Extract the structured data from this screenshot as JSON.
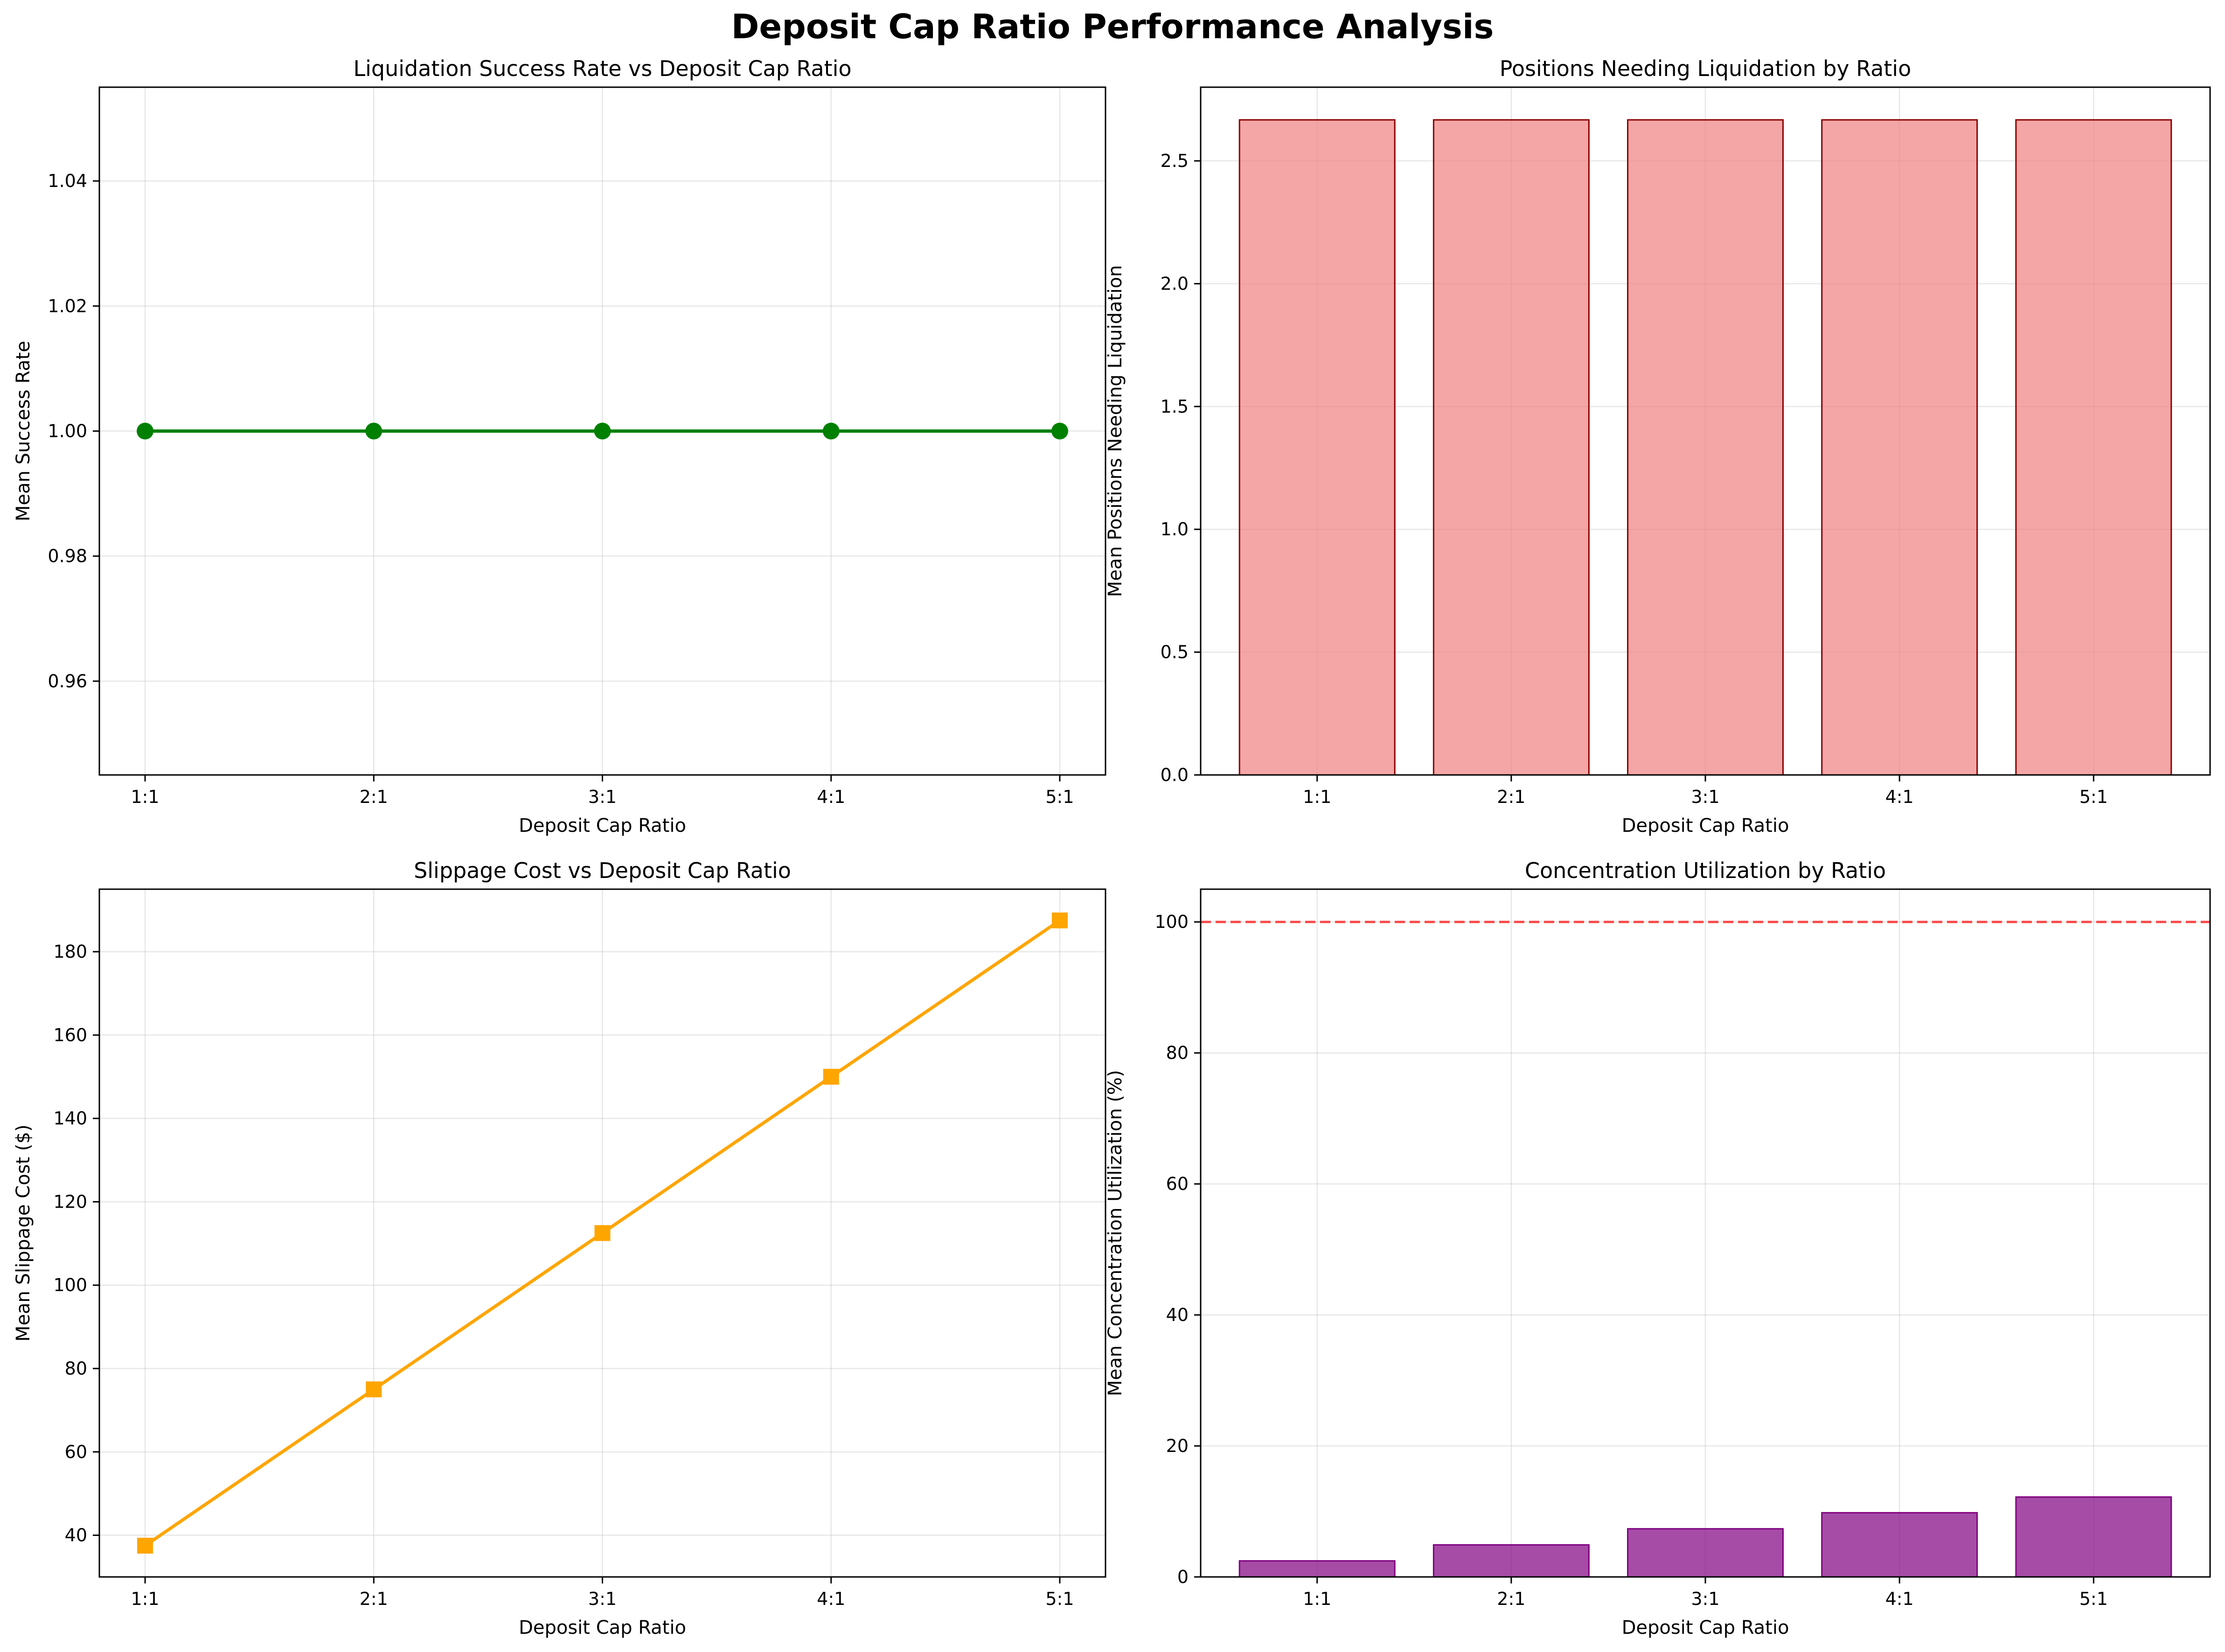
{
  "figure_title": "Deposit Cap Ratio Performance Analysis",
  "colors": {
    "line_success": "#008000",
    "line_slippage": "#FFA500",
    "bar_positions_fill": "#F08080",
    "bar_positions_edge": "#8B0000",
    "bar_concentration_fill": "#800080",
    "bar_concentration_edge": "#800080",
    "reference_line": "#FF0000"
  },
  "chart_data": [
    {
      "type": "line",
      "title": "Liquidation Success Rate vs Deposit Cap Ratio",
      "xlabel": "Deposit Cap Ratio",
      "ylabel": "Mean Success Rate",
      "categories": [
        "1:1",
        "2:1",
        "3:1",
        "4:1",
        "5:1"
      ],
      "values": [
        1.0,
        1.0,
        1.0,
        1.0,
        1.0
      ],
      "marker": "circle",
      "color": "#008000",
      "ylim": [
        0.945,
        1.055
      ],
      "yticks": [
        0.96,
        0.98,
        1.0,
        1.02,
        1.04
      ],
      "ytick_labels": [
        "0.96",
        "0.98",
        "1.00",
        "1.02",
        "1.04"
      ],
      "grid": true
    },
    {
      "type": "bar",
      "title": "Positions Needing Liquidation by Ratio",
      "xlabel": "Deposit Cap Ratio",
      "ylabel": "Mean Positions Needing Liquidation",
      "categories": [
        "1:1",
        "2:1",
        "3:1",
        "4:1",
        "5:1"
      ],
      "values": [
        2.667,
        2.667,
        2.667,
        2.667,
        2.667
      ],
      "color": "#F08080",
      "edge_color": "#8B0000",
      "ylim": [
        0,
        2.8
      ],
      "yticks": [
        0.0,
        0.5,
        1.0,
        1.5,
        2.0,
        2.5
      ],
      "ytick_labels": [
        "0.0",
        "0.5",
        "1.0",
        "1.5",
        "2.0",
        "2.5"
      ],
      "grid": true
    },
    {
      "type": "line",
      "title": "Slippage Cost vs Deposit Cap Ratio",
      "xlabel": "Deposit Cap Ratio",
      "ylabel": "Mean Slippage Cost ($)",
      "categories": [
        "1:1",
        "2:1",
        "3:1",
        "4:1",
        "5:1"
      ],
      "values": [
        37.5,
        75.0,
        112.5,
        150.0,
        187.5
      ],
      "marker": "square",
      "color": "#FFA500",
      "ylim": [
        30,
        195
      ],
      "yticks": [
        40,
        60,
        80,
        100,
        120,
        140,
        160,
        180
      ],
      "ytick_labels": [
        "40",
        "60",
        "80",
        "100",
        "120",
        "140",
        "160",
        "180"
      ],
      "grid": true
    },
    {
      "type": "bar",
      "title": "Concentration Utilization by Ratio",
      "xlabel": "Deposit Cap Ratio",
      "ylabel": "Mean Concentration Utilization (%)",
      "categories": [
        "1:1",
        "2:1",
        "3:1",
        "4:1",
        "5:1"
      ],
      "values": [
        2.45,
        4.9,
        7.35,
        9.8,
        12.2
      ],
      "color": "#800080",
      "edge_color": "#800080",
      "reference_line": {
        "y": 100,
        "style": "dashed",
        "color": "#FF0000"
      },
      "ylim": [
        0,
        105
      ],
      "yticks": [
        0,
        20,
        40,
        60,
        80,
        100
      ],
      "ytick_labels": [
        "0",
        "20",
        "40",
        "60",
        "80",
        "100"
      ],
      "grid": true
    }
  ]
}
